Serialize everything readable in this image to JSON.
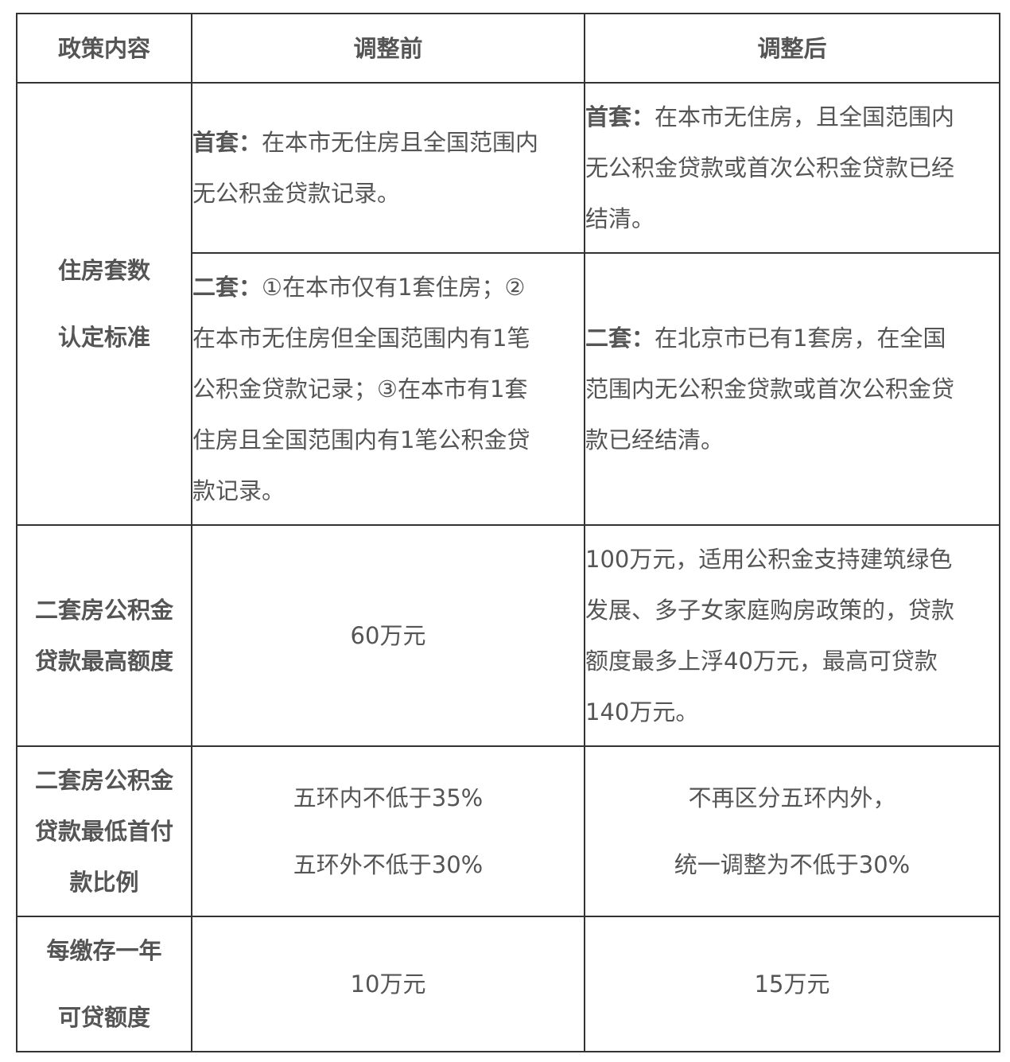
{
  "header": {
    "col1": "政策内容",
    "col2": "调整前",
    "col3": "调整后"
  },
  "rows": {
    "housing": {
      "label": [
        "住房套数",
        "认定标准"
      ],
      "first_before": {
        "prefix": "首套：",
        "lines": [
          "在本市无住房且全国范围内",
          "无公积金贷款记录。"
        ]
      },
      "first_after": {
        "prefix": "首套：",
        "lines": [
          "在本市无住房，且全国范围内",
          "无公积金贷款或首次公积金贷款已经",
          "结清。"
        ]
      },
      "second_before": {
        "prefix": "二套：",
        "lines": [
          "①在本市仅有1套住房；②",
          "在本市无住房但全国范围内有1笔",
          "公积金贷款记录；③在本市有1套",
          "住房且全国范围内有1笔公积金贷",
          "款记录。"
        ]
      },
      "second_after": {
        "prefix": "二套：",
        "lines": [
          "在北京市已有1套房，在全国",
          "范围内无公积金贷款或首次公积金贷",
          "款已经结清。"
        ]
      }
    },
    "max_loan": {
      "label": [
        "二套房公积金",
        "贷款最高额度"
      ],
      "before": "60万元",
      "after": [
        "100万元，适用公积金支持建筑绿色",
        "发展、多子女家庭购房政策的，贷款",
        "额度最多上浮40万元，最高可贷款",
        "140万元。"
      ]
    },
    "down_payment": {
      "label": [
        "二套房公积金",
        "贷款最低首付",
        "款比例"
      ],
      "before": [
        "五环内不低于35%",
        "五环外不低于30%"
      ],
      "after": [
        "不再区分五环内外，",
        "统一调整为不低于30%"
      ]
    },
    "per_year": {
      "label": [
        "每缴存一年",
        "可贷额度"
      ],
      "before": "10万元",
      "after": "15万元"
    }
  }
}
